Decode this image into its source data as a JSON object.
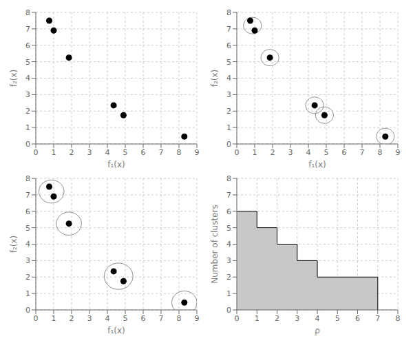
{
  "chart_data": [
    {
      "type": "scatter",
      "xlabel": "f₁(x)",
      "ylabel": "f₂(x)",
      "x": [
        0.75,
        1.0,
        1.85,
        4.35,
        4.9,
        8.3
      ],
      "values": [
        7.5,
        6.9,
        5.25,
        2.35,
        1.75,
        0.45
      ],
      "color": "black",
      "xlim": [
        0,
        9
      ],
      "ylim": [
        0,
        8
      ],
      "xticks": [
        0,
        1,
        2,
        3,
        4,
        5,
        6,
        7,
        8,
        9
      ],
      "yticks": [
        0,
        1,
        2,
        3,
        4,
        5,
        6,
        7,
        8
      ],
      "grid": true
    },
    {
      "type": "scatter",
      "xlabel": "f₁(x)",
      "ylabel": "f₂(x)",
      "x": [
        0.75,
        1.0,
        1.85,
        4.35,
        4.9,
        8.3
      ],
      "values": [
        7.5,
        6.9,
        5.25,
        2.35,
        1.75,
        0.45
      ],
      "color": "black",
      "xlim": [
        0,
        9
      ],
      "ylim": [
        0,
        8
      ],
      "xticks": [
        0,
        1,
        2,
        3,
        4,
        5,
        6,
        7,
        8,
        9
      ],
      "yticks": [
        0,
        1,
        2,
        3,
        4,
        5,
        6,
        7,
        8
      ],
      "grid": true,
      "circles": {
        "color": "#888888",
        "center_x": [
          0.875,
          1.85,
          4.35,
          4.9,
          8.3
        ],
        "center_y": [
          7.2,
          5.25,
          2.35,
          1.75,
          0.45
        ],
        "radius": [
          0.5,
          0.5,
          0.5,
          0.5,
          0.5
        ]
      }
    },
    {
      "type": "scatter",
      "xlabel": "f₁(x)",
      "ylabel": "f₂(x)",
      "x": [
        0.75,
        1.0,
        1.85,
        4.35,
        4.9,
        8.3
      ],
      "values": [
        7.5,
        6.9,
        5.25,
        2.35,
        1.75,
        0.45
      ],
      "color": "black",
      "xlim": [
        0,
        9
      ],
      "ylim": [
        0,
        8
      ],
      "xticks": [
        0,
        1,
        2,
        3,
        4,
        5,
        6,
        7,
        8,
        9
      ],
      "yticks": [
        0,
        1,
        2,
        3,
        4,
        5,
        6,
        7,
        8
      ],
      "grid": true,
      "circles": {
        "color": "#888888",
        "center_x": [
          0.875,
          1.85,
          4.625,
          8.3
        ],
        "center_y": [
          7.2,
          5.25,
          2.05,
          0.45
        ],
        "radius": [
          0.7,
          0.7,
          0.8,
          0.7
        ]
      }
    },
    {
      "type": "step",
      "xlabel": "ρ",
      "ylabel": "Number of clusters",
      "x": [
        0,
        0.8,
        1.0,
        2.0,
        3.0,
        4.0,
        7.0,
        7.0
      ],
      "values": [
        6,
        6,
        5,
        4,
        3,
        2,
        2,
        0
      ],
      "color": "#c8c8c8",
      "edge_color": "black",
      "xlim": [
        0,
        8
      ],
      "ylim": [
        0,
        8
      ],
      "xticks": [
        0,
        1,
        2,
        3,
        4,
        5,
        6,
        7,
        8
      ],
      "yticks": [
        0,
        1,
        2,
        3,
        4,
        5,
        6,
        7,
        8
      ],
      "grid": true
    }
  ]
}
